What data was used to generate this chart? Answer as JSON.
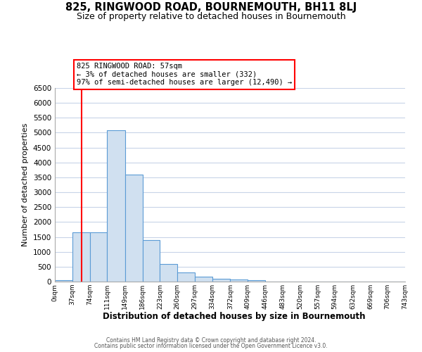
{
  "title": "825, RINGWOOD ROAD, BOURNEMOUTH, BH11 8LJ",
  "subtitle": "Size of property relative to detached houses in Bournemouth",
  "xlabel": "Distribution of detached houses by size in Bournemouth",
  "ylabel": "Number of detached properties",
  "bin_edges": [
    0,
    37,
    74,
    111,
    149,
    186,
    223,
    260,
    297,
    334,
    372,
    409,
    446,
    483,
    520,
    557,
    594,
    632,
    669,
    706,
    743
  ],
  "bar_heights": [
    50,
    1650,
    1660,
    5080,
    3600,
    1400,
    580,
    310,
    155,
    100,
    80,
    50,
    0,
    0,
    0,
    0,
    0,
    0,
    0,
    0
  ],
  "bar_color": "#d0e0f0",
  "bar_edge_color": "#5b9bd5",
  "red_line_x": 57,
  "ylim": [
    0,
    6500
  ],
  "yticks": [
    0,
    500,
    1000,
    1500,
    2000,
    2500,
    3000,
    3500,
    4000,
    4500,
    5000,
    5500,
    6000,
    6500
  ],
  "xtick_labels": [
    "0sqm",
    "37sqm",
    "74sqm",
    "111sqm",
    "149sqm",
    "186sqm",
    "223sqm",
    "260sqm",
    "297sqm",
    "334sqm",
    "372sqm",
    "409sqm",
    "446sqm",
    "483sqm",
    "520sqm",
    "557sqm",
    "594sqm",
    "632sqm",
    "669sqm",
    "706sqm",
    "743sqm"
  ],
  "annotation_title": "825 RINGWOOD ROAD: 57sqm",
  "annotation_line1": "← 3% of detached houses are smaller (332)",
  "annotation_line2": "97% of semi-detached houses are larger (12,490) →",
  "footnote1": "Contains HM Land Registry data © Crown copyright and database right 2024.",
  "footnote2": "Contains public sector information licensed under the Open Government Licence v3.0.",
  "bg_color": "#ffffff",
  "grid_color": "#c8d4e8",
  "title_fontsize": 10.5,
  "subtitle_fontsize": 9
}
